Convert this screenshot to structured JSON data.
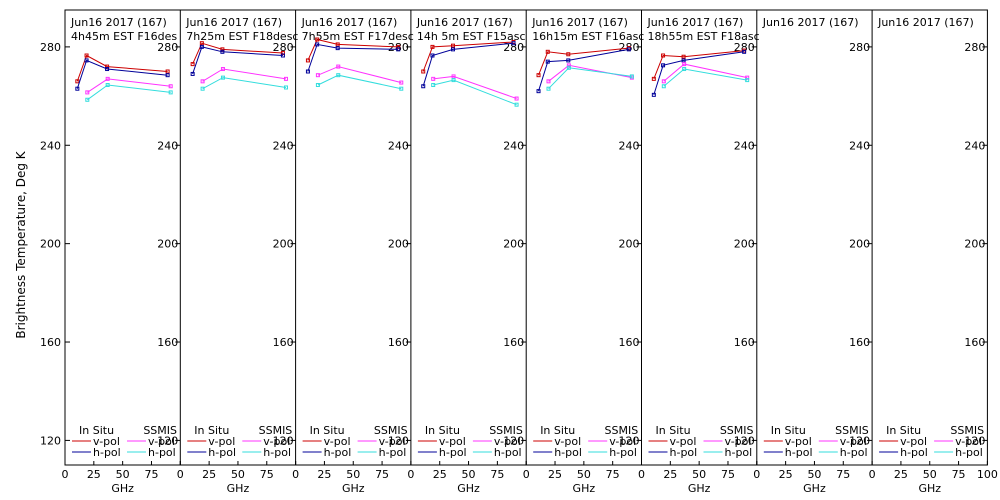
{
  "chart_data": {
    "type": "line",
    "ylabel": "Brightness Temperature, Deg K",
    "xlabel": "GHz",
    "ylim": [
      110,
      295
    ],
    "xlim": [
      0,
      100
    ],
    "yticks": [
      "120",
      "160",
      "200",
      "240",
      "280"
    ],
    "yticks_left": [
      "120",
      "160",
      "200",
      "240",
      "280"
    ],
    "xticks": [
      "0",
      "25",
      "50",
      "75",
      "100"
    ],
    "xticks_last": [
      "0",
      "25",
      "50",
      "75",
      "100"
    ],
    "legend": {
      "in_situ": "In Situ",
      "ssmis": "SSMIS",
      "vpol": "v-pol",
      "hpol": "h-pol"
    },
    "colors": {
      "insitu_v": "#cc0000",
      "insitu_h": "#000099",
      "ssmis_v": "#ff33ff",
      "ssmis_h": "#33dddd"
    },
    "panels": [
      {
        "title": "Jun16 2017 (167)",
        "subtitle": "4h45m  EST  F16des",
        "series": [
          {
            "name": "insitu_v",
            "x": [
              10.7,
              18.7,
              36.5,
              89
            ],
            "y": [
              266,
              276.5,
              272,
              270
            ]
          },
          {
            "name": "insitu_h",
            "x": [
              10.7,
              18.7,
              36.5,
              89
            ],
            "y": [
              263,
              274.5,
              271,
              268.5
            ]
          },
          {
            "name": "ssmis_v",
            "x": [
              19.35,
              37,
              91.655
            ],
            "y": [
              261.5,
              267,
              264
            ]
          },
          {
            "name": "ssmis_h",
            "x": [
              19.35,
              37,
              91.655
            ],
            "y": [
              258.5,
              264.5,
              261.5
            ]
          }
        ]
      },
      {
        "title": "Jun16 2017 (167)",
        "subtitle": "7h25m  EST  F18desc",
        "series": [
          {
            "name": "insitu_v",
            "x": [
              10.7,
              18.7,
              36.5,
              89
            ],
            "y": [
              273,
              281.5,
              279,
              277.5
            ]
          },
          {
            "name": "insitu_h",
            "x": [
              10.7,
              18.7,
              36.5,
              89
            ],
            "y": [
              269,
              280,
              278,
              276.5
            ]
          },
          {
            "name": "ssmis_v",
            "x": [
              19.35,
              37,
              91.655
            ],
            "y": [
              266,
              271,
              267
            ]
          },
          {
            "name": "ssmis_h",
            "x": [
              19.35,
              37,
              91.655
            ],
            "y": [
              263,
              267.5,
              263.5
            ]
          }
        ]
      },
      {
        "title": "Jun16 2017 (167)",
        "subtitle": "7h55m  EST  F17desc",
        "series": [
          {
            "name": "insitu_v",
            "x": [
              10.7,
              18.7,
              36.5,
              89
            ],
            "y": [
              274.5,
              283,
              281,
              280
            ]
          },
          {
            "name": "insitu_h",
            "x": [
              10.7,
              18.7,
              36.5,
              89
            ],
            "y": [
              270,
              281,
              279.5,
              279
            ]
          },
          {
            "name": "ssmis_v",
            "x": [
              19.35,
              37,
              91.655
            ],
            "y": [
              268.5,
              272,
              265.5
            ]
          },
          {
            "name": "ssmis_h",
            "x": [
              19.35,
              37,
              91.655
            ],
            "y": [
              264.5,
              268.5,
              263
            ]
          }
        ]
      },
      {
        "title": "Jun16 2017 (167)",
        "subtitle": "14h 5m  EST  F15asc",
        "series": [
          {
            "name": "insitu_v",
            "x": [
              10.7,
              18.7,
              36.5,
              89
            ],
            "y": [
              270,
              280,
              280.5,
              282
            ]
          },
          {
            "name": "insitu_h",
            "x": [
              10.7,
              18.7,
              36.5,
              89
            ],
            "y": [
              264,
              276.5,
              279,
              281.5
            ]
          },
          {
            "name": "ssmis_v",
            "x": [
              19.35,
              37,
              91.655
            ],
            "y": [
              267,
              268,
              259
            ]
          },
          {
            "name": "ssmis_h",
            "x": [
              19.35,
              37,
              91.655
            ],
            "y": [
              264.5,
              266.5,
              256.5
            ]
          }
        ]
      },
      {
        "title": "Jun16 2017 (167)",
        "subtitle": "16h15m  EST  F16asc",
        "series": [
          {
            "name": "insitu_v",
            "x": [
              10.7,
              18.7,
              36.5,
              89
            ],
            "y": [
              268.5,
              278,
              277,
              279.5
            ]
          },
          {
            "name": "insitu_h",
            "x": [
              10.7,
              18.7,
              36.5,
              89
            ],
            "y": [
              262,
              274,
              274.5,
              279
            ]
          },
          {
            "name": "ssmis_v",
            "x": [
              19.35,
              37,
              91.655
            ],
            "y": [
              266,
              272.5,
              267.5
            ]
          },
          {
            "name": "ssmis_h",
            "x": [
              19.35,
              37,
              91.655
            ],
            "y": [
              263,
              271.5,
              268
            ]
          }
        ]
      },
      {
        "title": "Jun16 2017 (167)",
        "subtitle": "18h55m  EST  F18asc",
        "series": [
          {
            "name": "insitu_v",
            "x": [
              10.7,
              18.7,
              36.5,
              89
            ],
            "y": [
              267,
              276.5,
              276,
              278.5
            ]
          },
          {
            "name": "insitu_h",
            "x": [
              10.7,
              18.7,
              36.5,
              89
            ],
            "y": [
              260.5,
              272.5,
              274.5,
              278
            ]
          },
          {
            "name": "ssmis_v",
            "x": [
              19.35,
              37,
              91.655
            ],
            "y": [
              266,
              273,
              267.5
            ]
          },
          {
            "name": "ssmis_h",
            "x": [
              19.35,
              37,
              91.655
            ],
            "y": [
              264,
              271,
              266.5
            ]
          }
        ]
      },
      {
        "title": "Jun16 2017 (167)",
        "subtitle": "",
        "series": []
      },
      {
        "title": "Jun16 2017 (167)",
        "subtitle": "",
        "series": []
      }
    ]
  }
}
